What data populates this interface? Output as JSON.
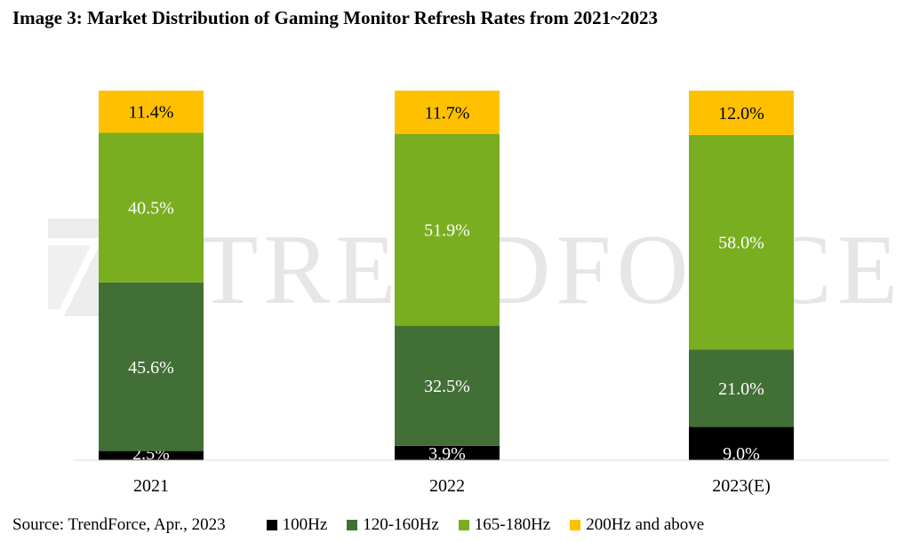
{
  "header": {
    "title": "Image 3: Market Distribution of Gaming Monitor Refresh Rates from 2021~2023"
  },
  "watermark": {
    "text": "TRENDFORCE"
  },
  "footer": {
    "source": "Source: TrendForce, Apr., 2023"
  },
  "chart_data": {
    "type": "stacked-bar",
    "title": "Image 3: Market Distribution of Gaming Monitor Refresh Rates from 2021~2023",
    "xlabel": "",
    "ylabel": "",
    "ylim": [
      0,
      100
    ],
    "categories": [
      "2021",
      "2022",
      "2023(E)"
    ],
    "series": [
      {
        "name": "100Hz",
        "color": "#000000",
        "label_color": "#ffffff",
        "values": [
          2.5,
          3.9,
          9.0
        ],
        "labels": [
          "2.5%",
          "3.9%",
          "9.0%"
        ]
      },
      {
        "name": "120-160Hz",
        "color": "#426f35",
        "label_color": "#ffffff",
        "values": [
          45.6,
          32.5,
          21.0
        ],
        "labels": [
          "45.6%",
          "32.5%",
          "21.0%"
        ]
      },
      {
        "name": "165-180Hz",
        "color": "#79ae21",
        "label_color": "#ffffff",
        "values": [
          40.5,
          51.9,
          58.0
        ],
        "labels": [
          "40.5%",
          "51.9%",
          "58.0%"
        ]
      },
      {
        "name": "200Hz and above",
        "color": "#ffc000",
        "label_color": "#000000",
        "values": [
          11.4,
          11.7,
          12.0
        ],
        "labels": [
          "11.4%",
          "11.7%",
          "12.0%"
        ]
      }
    ],
    "legend_position": "bottom"
  }
}
